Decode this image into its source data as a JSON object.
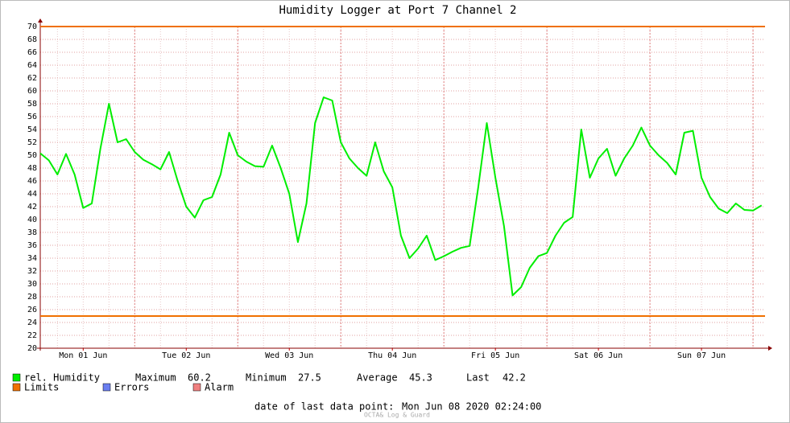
{
  "chart_data": {
    "type": "line",
    "title": "Humidity Logger at Port 7 Channel 2",
    "xlim": [
      0,
      84.4
    ],
    "xticks": [
      {
        "value": 5,
        "label": "Mon 01 Jun"
      },
      {
        "value": 17,
        "label": "Tue 02 Jun"
      },
      {
        "value": 29,
        "label": "Wed 03 Jun"
      },
      {
        "value": 41,
        "label": "Thu 04 Jun"
      },
      {
        "value": 53,
        "label": "Fri 05 Jun"
      },
      {
        "value": 65,
        "label": "Sat 06 Jun"
      },
      {
        "value": 77,
        "label": "Sun 07 Jun"
      }
    ],
    "xgrid": [
      11,
      23,
      35,
      47,
      59,
      71,
      83
    ],
    "ylim": [
      20,
      70
    ],
    "yticks": [
      20,
      22,
      24,
      26,
      28,
      30,
      32,
      34,
      36,
      38,
      40,
      42,
      44,
      46,
      48,
      50,
      52,
      54,
      56,
      58,
      60,
      62,
      64,
      66,
      68,
      70
    ],
    "grid": true,
    "series": [
      {
        "name": "rel. Humidity",
        "color": "#00ee00",
        "values": [
          50.3,
          49.2,
          47,
          50.2,
          47,
          41.8,
          42.5,
          51,
          58,
          52,
          52.5,
          50.5,
          49.3,
          48.6,
          47.8,
          50.5,
          46,
          42,
          40.3,
          43,
          43.5,
          47,
          53.5,
          50,
          49,
          48.3,
          48.2,
          51.5,
          48,
          44,
          36.5,
          42.5,
          55,
          59,
          58.5,
          52,
          49.5,
          48,
          46.8,
          52,
          47.5,
          45,
          37.5,
          34,
          35.5,
          37.5,
          33.7,
          34.3,
          35,
          35.6,
          35.9,
          45,
          55,
          46.5,
          39,
          28.2,
          29.5,
          32.5,
          34.3,
          34.8,
          37.5,
          39.5,
          40.4,
          54,
          46.5,
          49.5,
          51,
          46.8,
          49.5,
          51.5,
          54.3,
          51.5,
          50,
          48.8,
          47,
          53.5,
          53.8,
          46.5,
          43.5,
          41.7,
          41,
          42.5,
          41.5,
          41.4,
          42.2
        ]
      }
    ],
    "limits": {
      "name": "Limits",
      "color": "#f07000",
      "values": [
        70,
        25
      ]
    },
    "legend_extra": [
      {
        "name": "Errors",
        "color": "#6a7ef0"
      },
      {
        "name": "Alarm",
        "color": "#f08080"
      }
    ],
    "stats": [
      {
        "label": "Maximum",
        "value": "60.2"
      },
      {
        "label": "Minimum",
        "value": "27.5"
      },
      {
        "label": "Average",
        "value": "45.3"
      },
      {
        "label": "Last",
        "value": "42.2"
      }
    ],
    "footer": {
      "label": "date of last data point:",
      "value": "Mon Jun 08 2020 02:24:00"
    },
    "credit": "OCTA& Log & Guard"
  }
}
